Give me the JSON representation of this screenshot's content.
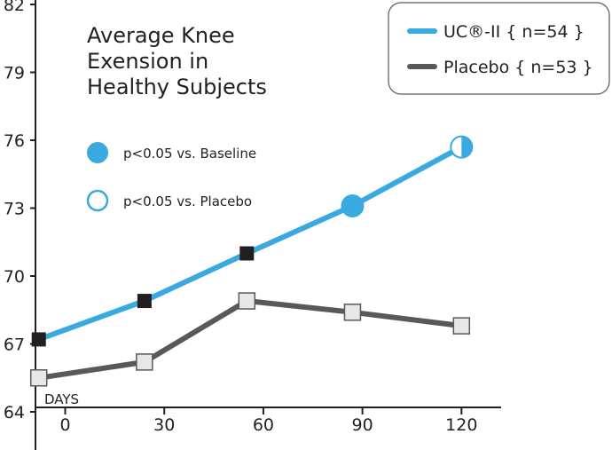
{
  "chart_data": {
    "type": "line",
    "title_lines": [
      "Average Knee",
      "Exension in",
      "Healthy Subjects"
    ],
    "x_axis_label": "DAYS",
    "x": [
      0,
      30,
      60,
      90,
      120
    ],
    "xlim": [
      -9,
      132
    ],
    "ylim": [
      64,
      82
    ],
    "xticks": [
      "0",
      "30",
      "60",
      "90",
      "120"
    ],
    "yticks": [
      "64",
      "67",
      "70",
      "73",
      "76",
      "79",
      "82"
    ],
    "grid": false,
    "legend_position": "top-right",
    "series": [
      {
        "name": "UC®-II { n=54 }",
        "color": "#39a9e0",
        "x": [
          -8,
          24,
          55,
          87,
          120
        ],
        "values": [
          67.2,
          68.9,
          71.0,
          73.1,
          75.7
        ],
        "markers": [
          "square-black",
          "square-black",
          "square-black",
          "circle-filled",
          "circle-half"
        ]
      },
      {
        "name": "Placebo { n=53 }",
        "color": "#58595b",
        "x": [
          -8,
          24,
          55,
          87,
          120
        ],
        "values": [
          65.5,
          66.2,
          68.9,
          68.4,
          67.8
        ],
        "markers": [
          "square-gray",
          "square-gray",
          "square-gray",
          "square-gray",
          "square-gray"
        ]
      }
    ],
    "annotations": [
      {
        "marker": "circle-filled",
        "text": "p<0.05 vs. Baseline"
      },
      {
        "marker": "circle-open",
        "text": "p<0.05 vs. Placebo"
      }
    ]
  }
}
